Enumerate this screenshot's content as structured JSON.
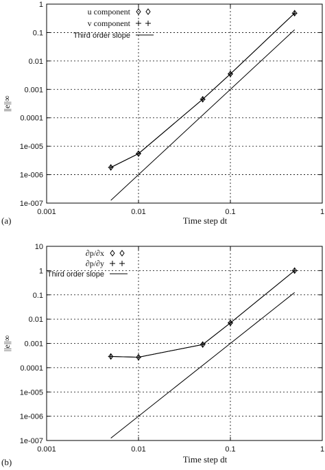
{
  "chart_data": [
    {
      "panel_label": "(a)",
      "type": "line",
      "xscale": "log",
      "yscale": "log",
      "xlim": [
        0.001,
        1
      ],
      "ylim": [
        1e-07,
        1
      ],
      "xticks": [
        "0.001",
        "0.01",
        "0.1",
        "1"
      ],
      "yticks": [
        "1e-007",
        "1e-006",
        "1e-005",
        "0.0001",
        "0.001",
        "0.01",
        "0.1",
        "1"
      ],
      "xlabel": "Time step dt",
      "ylabel": "||e||∞",
      "grid": true,
      "legend_position": "top-left",
      "series": [
        {
          "name": "u component",
          "marker": "diamond",
          "x": [
            0.005,
            0.01,
            0.05,
            0.1,
            0.5
          ],
          "y": [
            1.8e-06,
            5.5e-06,
            0.00045,
            0.0035,
            0.48
          ]
        },
        {
          "name": "v component",
          "marker": "plus",
          "x": [
            0.005,
            0.01,
            0.05,
            0.1,
            0.5
          ],
          "y": [
            1.8e-06,
            5.5e-06,
            0.00045,
            0.0035,
            0.48
          ]
        },
        {
          "name": "Third order slope",
          "marker": "none",
          "x": [
            0.005,
            0.5
          ],
          "y": [
            1.25e-07,
            0.125
          ]
        }
      ]
    },
    {
      "panel_label": "(b)",
      "type": "line",
      "xscale": "log",
      "yscale": "log",
      "xlim": [
        0.001,
        1
      ],
      "ylim": [
        1e-07,
        10
      ],
      "xticks": [
        "0.001",
        "0.01",
        "0.1",
        "1"
      ],
      "yticks": [
        "1e-007",
        "1e-006",
        "1e-005",
        "0.0001",
        "0.001",
        "0.01",
        "0.1",
        "1",
        "10"
      ],
      "xlabel": "Time step dt",
      "ylabel": "||e||∞",
      "grid": true,
      "legend_position": "top-left",
      "series": [
        {
          "name": "∂p/∂x",
          "marker": "diamond",
          "x": [
            0.005,
            0.01,
            0.05,
            0.1,
            0.5
          ],
          "y": [
            0.00029,
            0.00027,
            0.0009,
            0.007,
            1.0
          ]
        },
        {
          "name": "∂p/∂y",
          "marker": "plus",
          "x": [
            0.005,
            0.01,
            0.05,
            0.1,
            0.5
          ],
          "y": [
            0.00029,
            0.00027,
            0.0009,
            0.007,
            1.0
          ]
        },
        {
          "name": "Third order slope",
          "marker": "none",
          "x": [
            0.005,
            0.5
          ],
          "y": [
            1.25e-07,
            0.125
          ]
        }
      ]
    }
  ]
}
